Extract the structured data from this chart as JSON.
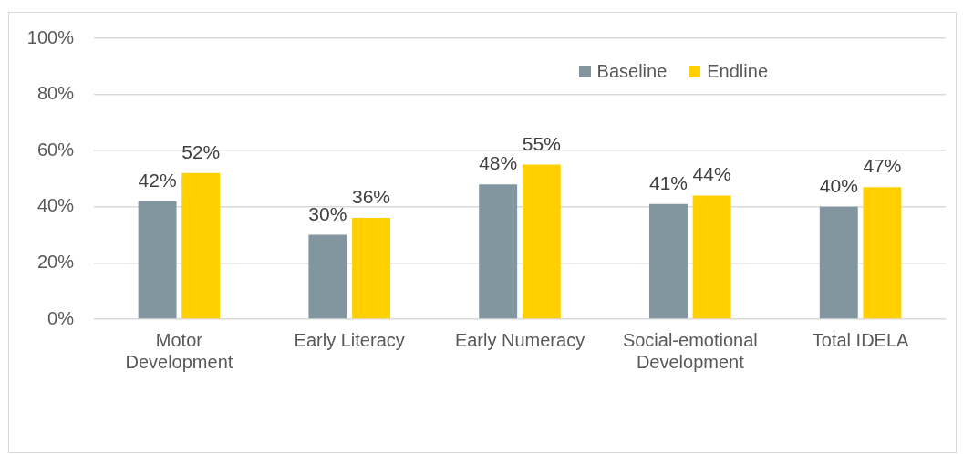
{
  "chart_data": {
    "type": "bar",
    "categories": [
      "Motor Development",
      "Early Literacy",
      "Early Numeracy",
      "Social-emotional Development",
      "Total IDELA"
    ],
    "series": [
      {
        "name": "Baseline",
        "color": "#8296a0",
        "values": [
          42,
          30,
          48,
          41,
          40
        ],
        "value_labels": [
          "42%",
          "30%",
          "48%",
          "41%",
          "40%"
        ]
      },
      {
        "name": "Endline",
        "color": "#ffcf00",
        "values": [
          52,
          36,
          55,
          44,
          47
        ],
        "value_labels": [
          "52%",
          "36%",
          "55%",
          "44%",
          "47%"
        ]
      }
    ],
    "ylim": [
      0,
      100
    ],
    "yticks": [
      {
        "value": 0,
        "label": "0%"
      },
      {
        "value": 20,
        "label": "20%"
      },
      {
        "value": 40,
        "label": "40%"
      },
      {
        "value": 60,
        "label": "60%"
      },
      {
        "value": 80,
        "label": "80%"
      },
      {
        "value": 100,
        "label": "100%"
      }
    ],
    "grid": "y",
    "legend": "top right"
  }
}
